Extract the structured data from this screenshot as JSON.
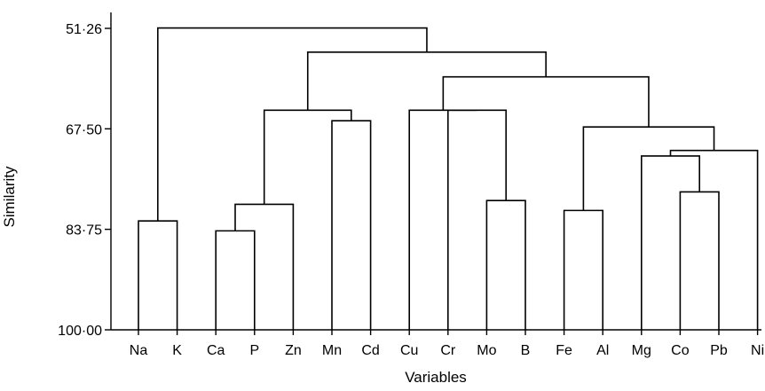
{
  "chart_data": {
    "type": "dendrogram",
    "xlabel": "Variables",
    "ylabel": "Similarity",
    "ylim": [
      100.0,
      51.26
    ],
    "yticks": [
      {
        "value": 51.26,
        "label": "51·26"
      },
      {
        "value": 67.5,
        "label": "67·50"
      },
      {
        "value": 83.75,
        "label": "83·75"
      },
      {
        "value": 100.0,
        "label": "100·00"
      }
    ],
    "leaves": [
      "Na",
      "K",
      "Ca",
      "P",
      "Zn",
      "Mn",
      "Cd",
      "Cu",
      "Cr",
      "Mo",
      "B",
      "Fe",
      "Al",
      "Mg",
      "Co",
      "Pb",
      "Ni"
    ],
    "merges": [
      {
        "left": "Na",
        "right": "K",
        "similarity": 82.4
      },
      {
        "left": "Ca",
        "right": "P",
        "similarity": 84.0
      },
      {
        "left": "Ca+P",
        "right": "Zn",
        "similarity": 79.7
      },
      {
        "left": "Mn",
        "right": "Cd",
        "similarity": 66.2
      },
      {
        "left": "Ca+P+Zn",
        "right": "Mn+Cd",
        "similarity": 64.5
      },
      {
        "left": "Mo",
        "right": "B",
        "similarity": 79.1
      },
      {
        "left": "Cr",
        "right": "Mo+B",
        "similarity": 64.5
      },
      {
        "left": "Cu",
        "right": "Cr+Mo+B",
        "similarity": 64.5
      },
      {
        "left": "Fe",
        "right": "Al",
        "similarity": 80.7
      },
      {
        "left": "Co",
        "right": "Pb",
        "similarity": 77.7
      },
      {
        "left": "Mg",
        "right": "Co+Pb",
        "similarity": 71.9
      },
      {
        "left": "Mg+Co+Pb",
        "right": "Ni",
        "similarity": 71.0
      },
      {
        "left": "Fe+Al",
        "right": "Mg+Co+Pb+Ni",
        "similarity": 67.2
      },
      {
        "left": "Cu+Cr+Mo+B",
        "right": "Fe+Al+Mg+Co+Pb+Ni",
        "similarity": 59.1
      },
      {
        "left": "Ca+P+Zn+Mn+Cd",
        "right": "Cu+Cr+Mo+B+Fe+Al+Mg+Co+Pb+Ni",
        "similarity": 55.1
      },
      {
        "left": "Na+K",
        "right": "Ca+P+Zn+Mn+Cd+Cu+Cr+Mo+B+Fe+Al+Mg+Co+Pb+Ni",
        "similarity": 51.2
      }
    ]
  }
}
